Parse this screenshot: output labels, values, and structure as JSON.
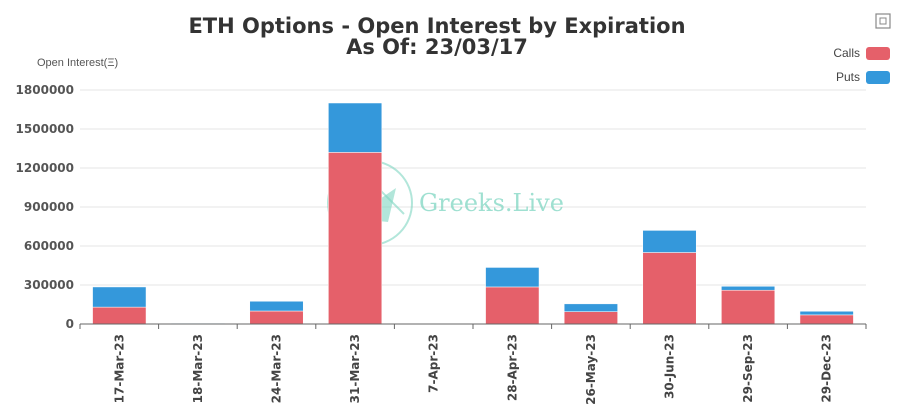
{
  "chart_data": {
    "type": "bar",
    "stacked": true,
    "title": "ETH Options - Open Interest by Expiration",
    "subtitle": "As Of: 23/03/17",
    "ylabel": "Open Interest(Ξ)",
    "xlabel": "",
    "ylim": [
      0,
      1800000
    ],
    "yticks": [
      0,
      300000,
      600000,
      900000,
      1200000,
      1500000,
      1800000
    ],
    "grid": true,
    "legend": "top-right",
    "categories": [
      "17-Mar-23",
      "18-Mar-23",
      "24-Mar-23",
      "31-Mar-23",
      "7-Apr-23",
      "28-Apr-23",
      "26-May-23",
      "30-Jun-23",
      "29-Sep-23",
      "29-Dec-23"
    ],
    "series": [
      {
        "name": "Calls",
        "color": "#e5606a",
        "values": [
          130000,
          3000,
          100000,
          1320000,
          0,
          285000,
          95000,
          550000,
          260000,
          70000
        ]
      },
      {
        "name": "Puts",
        "color": "#3498db",
        "values": [
          155000,
          2000,
          75000,
          380000,
          0,
          150000,
          60000,
          170000,
          30000,
          28000
        ]
      }
    ]
  },
  "watermark": {
    "text": "Greeks.Live",
    "icon": "greeks-live-logo-icon"
  },
  "toolbar": {
    "icon": "fullscreen-icon"
  }
}
